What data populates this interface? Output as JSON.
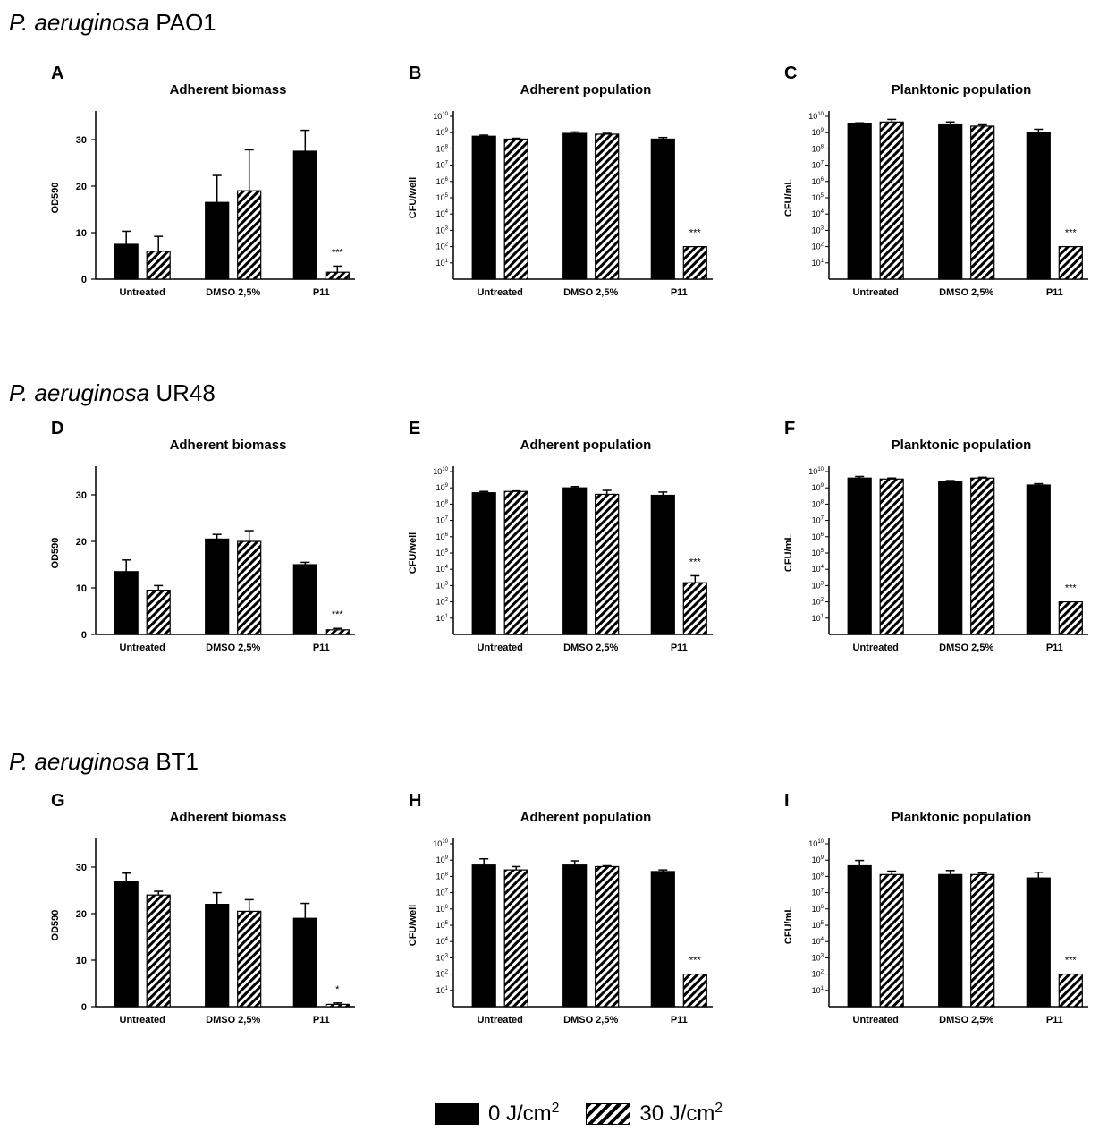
{
  "strain_titles": [
    {
      "genus": "P. aeruginosa",
      "strain": "PAO1"
    },
    {
      "genus": "P. aeruginosa",
      "strain": "UR48"
    },
    {
      "genus": "P. aeruginosa",
      "strain": "BT1"
    }
  ],
  "legend": [
    {
      "label": "0 J/cm",
      "sup": "2",
      "pattern": "solid"
    },
    {
      "label": "30 J/cm",
      "sup": "2",
      "pattern": "hatch"
    }
  ],
  "colors": {
    "solid": "#000000",
    "hatch": "#000000",
    "background": "#ffffff"
  },
  "chart_data": [
    {
      "panel": "A",
      "type": "bar",
      "title": "Adherent biomass",
      "ylabel": "OD590",
      "scale": "linear",
      "ylim": [
        0,
        35
      ],
      "yticks": [
        0,
        10,
        20,
        30
      ],
      "categories": [
        "Untreated",
        "DMSO 2,5%",
        "P11"
      ],
      "series": [
        {
          "name": "0 J/cm2",
          "values": [
            7.5,
            16.5,
            27.5
          ],
          "errors": [
            2.8,
            5.8,
            4.5
          ]
        },
        {
          "name": "30 J/cm2",
          "values": [
            6,
            19,
            1.5
          ],
          "errors": [
            3.2,
            8.8,
            1.3
          ]
        }
      ],
      "annotations": [
        {
          "category": "P11",
          "series": "30 J/cm2",
          "text": "***"
        }
      ]
    },
    {
      "panel": "B",
      "type": "bar",
      "title": "Adherent population",
      "ylabel": "CFU/well",
      "scale": "log",
      "ylim": [
        1,
        10000000000.0
      ],
      "yticks_exp": [
        1,
        2,
        3,
        4,
        5,
        6,
        7,
        8,
        9,
        10
      ],
      "categories": [
        "Untreated",
        "DMSO 2,5%",
        "P11"
      ],
      "series": [
        {
          "name": "0 J/cm2",
          "values": [
            600000000.0,
            900000000.0,
            400000000.0
          ],
          "errors": [
            100000000.0,
            200000000.0,
            100000000.0
          ]
        },
        {
          "name": "30 J/cm2",
          "values": [
            400000000.0,
            800000000.0,
            100
          ],
          "errors": [
            50000000.0,
            100000000.0,
            0
          ]
        }
      ],
      "annotations": [
        {
          "category": "P11",
          "series": "30 J/cm2",
          "text": "***"
        }
      ]
    },
    {
      "panel": "C",
      "type": "bar",
      "title": "Planktonic population",
      "ylabel": "CFU/mL",
      "scale": "log",
      "ylim": [
        1,
        10000000000.0
      ],
      "yticks_exp": [
        1,
        2,
        3,
        4,
        5,
        6,
        7,
        8,
        9,
        10
      ],
      "categories": [
        "Untreated",
        "DMSO 2,5%",
        "P11"
      ],
      "series": [
        {
          "name": "0 J/cm2",
          "values": [
            3500000000.0,
            3000000000.0,
            1000000000.0
          ],
          "errors": [
            500000000.0,
            1500000000.0,
            600000000.0
          ]
        },
        {
          "name": "30 J/cm2",
          "values": [
            4500000000.0,
            2500000000.0,
            100
          ],
          "errors": [
            2000000000.0,
            500000000.0,
            0
          ]
        }
      ],
      "annotations": [
        {
          "category": "P11",
          "series": "30 J/cm2",
          "text": "***"
        }
      ]
    },
    {
      "panel": "D",
      "type": "bar",
      "title": "Adherent biomass",
      "ylabel": "OD590",
      "scale": "linear",
      "ylim": [
        0,
        35
      ],
      "yticks": [
        0,
        10,
        20,
        30
      ],
      "categories": [
        "Untreated",
        "DMSO 2,5%",
        "P11"
      ],
      "series": [
        {
          "name": "0 J/cm2",
          "values": [
            13.5,
            20.5,
            15
          ],
          "errors": [
            2.5,
            1,
            0.5
          ]
        },
        {
          "name": "30 J/cm2",
          "values": [
            9.5,
            20,
            1
          ],
          "errors": [
            1,
            2.3,
            0.3
          ]
        }
      ],
      "annotations": [
        {
          "category": "P11",
          "series": "30 J/cm2",
          "text": "***"
        }
      ]
    },
    {
      "panel": "E",
      "type": "bar",
      "title": "Adherent population",
      "ylabel": "CFU/well",
      "scale": "log",
      "ylim": [
        1,
        10000000000.0
      ],
      "yticks_exp": [
        1,
        2,
        3,
        4,
        5,
        6,
        7,
        8,
        9,
        10
      ],
      "categories": [
        "Untreated",
        "DMSO 2,5%",
        "P11"
      ],
      "series": [
        {
          "name": "0 J/cm2",
          "values": [
            500000000.0,
            1000000000.0,
            350000000.0
          ],
          "errors": [
            100000000.0,
            200000000.0,
            200000000.0
          ]
        },
        {
          "name": "30 J/cm2",
          "values": [
            600000000.0,
            400000000.0,
            1500
          ],
          "errors": [
            50000000.0,
            300000000.0,
            2500
          ]
        }
      ],
      "annotations": [
        {
          "category": "P11",
          "series": "30 J/cm2",
          "text": "***"
        }
      ]
    },
    {
      "panel": "F",
      "type": "bar",
      "title": "Planktonic population",
      "ylabel": "CFU/mL",
      "scale": "log",
      "ylim": [
        1,
        10000000000.0
      ],
      "yticks_exp": [
        1,
        2,
        3,
        4,
        5,
        6,
        7,
        8,
        9,
        10
      ],
      "categories": [
        "Untreated",
        "DMSO 2,5%",
        "P11"
      ],
      "series": [
        {
          "name": "0 J/cm2",
          "values": [
            4000000000.0,
            2500000000.0,
            1500000000.0
          ],
          "errors": [
            1000000000.0,
            300000000.0,
            300000000.0
          ]
        },
        {
          "name": "30 J/cm2",
          "values": [
            3500000000.0,
            4000000000.0,
            100
          ],
          "errors": [
            500000000.0,
            500000000.0,
            0
          ]
        }
      ],
      "annotations": [
        {
          "category": "P11",
          "series": "30 J/cm2",
          "text": "***"
        }
      ]
    },
    {
      "panel": "G",
      "type": "bar",
      "title": "Adherent biomass",
      "ylabel": "OD590",
      "scale": "linear",
      "ylim": [
        0,
        35
      ],
      "yticks": [
        0,
        10,
        20,
        30
      ],
      "categories": [
        "Untreated",
        "DMSO 2,5%",
        "P11"
      ],
      "series": [
        {
          "name": "0 J/cm2",
          "values": [
            27,
            22,
            19
          ],
          "errors": [
            1.7,
            2.5,
            3.2
          ]
        },
        {
          "name": "30 J/cm2",
          "values": [
            24,
            20.5,
            0.5
          ],
          "errors": [
            0.8,
            2.5,
            0.3
          ]
        }
      ],
      "annotations": [
        {
          "category": "P11",
          "series": "30 J/cm2",
          "text": "*"
        }
      ]
    },
    {
      "panel": "H",
      "type": "bar",
      "title": "Adherent population",
      "ylabel": "CFU/well",
      "scale": "log",
      "ylim": [
        1,
        10000000000.0
      ],
      "yticks_exp": [
        1,
        2,
        3,
        4,
        5,
        6,
        7,
        8,
        9,
        10
      ],
      "categories": [
        "Untreated",
        "DMSO 2,5%",
        "P11"
      ],
      "series": [
        {
          "name": "0 J/cm2",
          "values": [
            500000000.0,
            500000000.0,
            200000000.0
          ],
          "errors": [
            700000000.0,
            400000000.0,
            50000000.0
          ]
        },
        {
          "name": "30 J/cm2",
          "values": [
            250000000.0,
            400000000.0,
            100
          ],
          "errors": [
            150000000.0,
            50000000.0,
            0
          ]
        }
      ],
      "annotations": [
        {
          "category": "P11",
          "series": "30 J/cm2",
          "text": "***"
        }
      ]
    },
    {
      "panel": "I",
      "type": "bar",
      "title": "Planktonic population",
      "ylabel": "CFU/mL",
      "scale": "log",
      "ylim": [
        1,
        10000000000.0
      ],
      "yticks_exp": [
        1,
        2,
        3,
        4,
        5,
        6,
        7,
        8,
        9,
        10
      ],
      "categories": [
        "Untreated",
        "DMSO 2,5%",
        "P11"
      ],
      "series": [
        {
          "name": "0 J/cm2",
          "values": [
            450000000.0,
            130000000.0,
            80000000.0
          ],
          "errors": [
            500000000.0,
            100000000.0,
            100000000.0
          ]
        },
        {
          "name": "30 J/cm2",
          "values": [
            130000000.0,
            130000000.0,
            100
          ],
          "errors": [
            80000000.0,
            30000000.0,
            0
          ]
        }
      ],
      "annotations": [
        {
          "category": "P11",
          "series": "30 J/cm2",
          "text": "***"
        }
      ]
    }
  ]
}
